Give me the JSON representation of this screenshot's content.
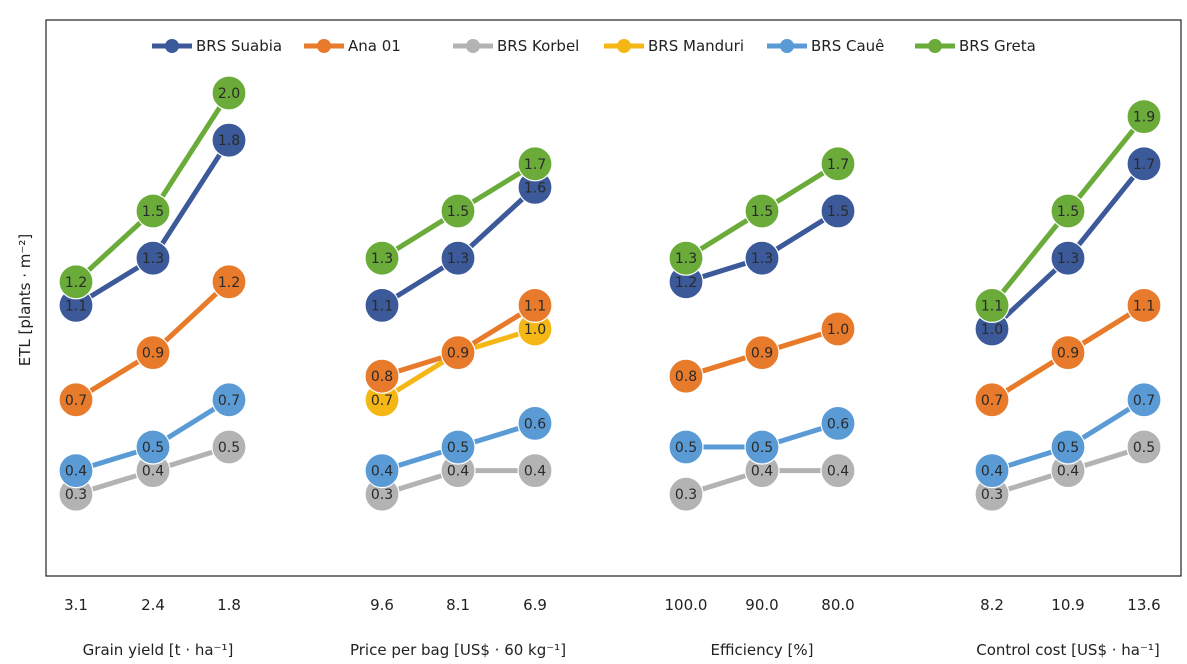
{
  "chart_data": {
    "type": "line",
    "ylabel": "ETL [plants · m⁻²]",
    "ylim": [
      0,
      2.2
    ],
    "grid": false,
    "legend_position": "top",
    "groups": [
      {
        "title": "Grain yield [t · ha⁻¹]",
        "x": [
          "3.1",
          "2.4",
          "1.8"
        ]
      },
      {
        "title": "Price per bag [US$ · 60 kg⁻¹]",
        "x": [
          "9.6",
          "8.1",
          "6.9"
        ]
      },
      {
        "title": "Efficiency [%]",
        "x": [
          "100.0",
          "90.0",
          "80.0"
        ]
      },
      {
        "title": "Control cost [US$ · ha⁻¹]",
        "x": [
          "8.2",
          "10.9",
          "13.6"
        ]
      }
    ],
    "series": [
      {
        "name": "BRS Suabia",
        "color": "#3c5a9a",
        "values": [
          [
            1.1,
            1.3,
            1.8
          ],
          [
            1.1,
            1.3,
            1.6
          ],
          [
            1.2,
            1.3,
            1.5
          ],
          [
            1.0,
            1.3,
            1.7
          ]
        ]
      },
      {
        "name": "Ana 01",
        "color": "#e87a2b",
        "values": [
          [
            0.7,
            0.9,
            1.2
          ],
          [
            0.8,
            0.9,
            1.1
          ],
          [
            0.8,
            0.9,
            1.0
          ],
          [
            0.7,
            0.9,
            1.1
          ]
        ]
      },
      {
        "name": "BRS Korbel",
        "color": "#b3b3b3",
        "values": [
          [
            0.3,
            0.4,
            0.5
          ],
          [
            0.3,
            0.4,
            0.4
          ],
          [
            0.3,
            0.4,
            0.4
          ],
          [
            0.3,
            0.4,
            0.5
          ]
        ]
      },
      {
        "name": "BRS Manduri",
        "color": "#f5b716",
        "values": [
          [
            0.7,
            0.9,
            1.2
          ],
          [
            0.7,
            0.9,
            1.0
          ],
          [
            0.8,
            0.9,
            1.0
          ],
          [
            0.7,
            0.9,
            1.1
          ]
        ]
      },
      {
        "name": "BRS Cauê",
        "color": "#5b9bd5",
        "values": [
          [
            0.4,
            0.5,
            0.7
          ],
          [
            0.4,
            0.5,
            0.6
          ],
          [
            0.5,
            0.5,
            0.6
          ],
          [
            0.4,
            0.5,
            0.7
          ]
        ]
      },
      {
        "name": "BRS Greta",
        "color": "#6aab3a",
        "values": [
          [
            1.2,
            1.5,
            2.0
          ],
          [
            1.3,
            1.5,
            1.7
          ],
          [
            1.3,
            1.5,
            1.7
          ],
          [
            1.1,
            1.5,
            1.9
          ]
        ]
      }
    ],
    "draw_order": [
      "BRS Korbel",
      "BRS Cauê",
      "BRS Manduri",
      "Ana 01",
      "BRS Suabia",
      "BRS Greta"
    ]
  }
}
